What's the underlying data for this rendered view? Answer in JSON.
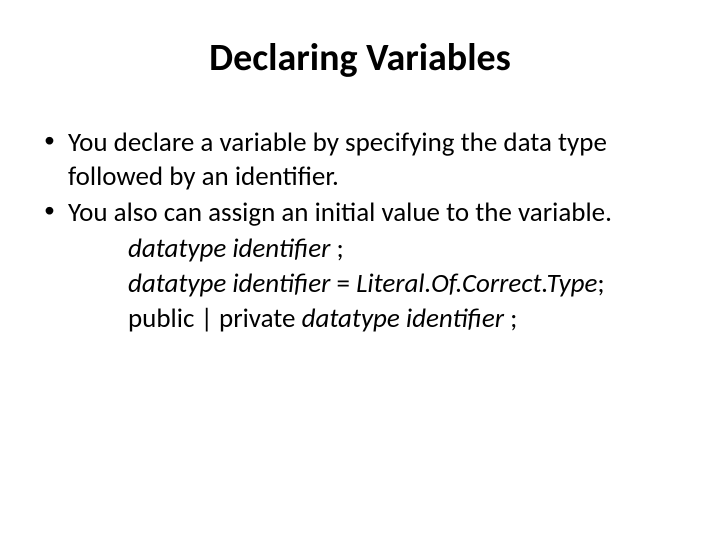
{
  "slide": {
    "title": "Declaring Variables",
    "title_fontsize": 38,
    "body_fontsize": 27,
    "text_color": "#000000",
    "background_color": "#ffffff",
    "bullets": [
      "You declare a variable by specifying the data type followed by an identifier.",
      "You also can assign an initial value to the variable."
    ],
    "syntax_lines": [
      {
        "prefix": "",
        "italic1": "datatype identifier",
        "mid": " ;",
        "italic2": "",
        "suffix": ""
      },
      {
        "prefix": "",
        "italic1": "datatype identifier",
        "mid": " = ",
        "italic2": "Literal.Of.Correct.Type",
        "suffix": ";"
      },
      {
        "prefix": "public | private ",
        "italic1": "datatype identifier",
        "mid": " ;",
        "italic2": "",
        "suffix": ""
      }
    ]
  }
}
